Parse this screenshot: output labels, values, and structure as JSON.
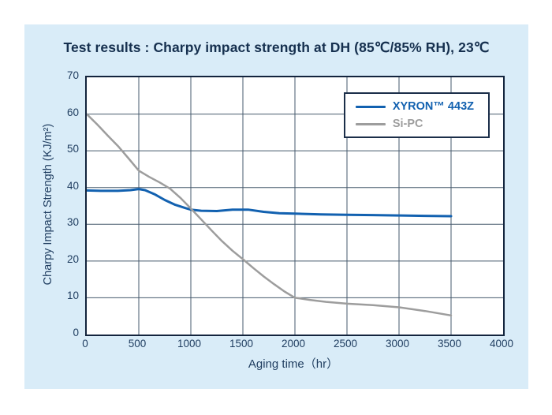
{
  "colors": {
    "panel_background": "#d9ecf8",
    "title_text": "#16304f",
    "axis_text": "#1e3c5f",
    "grid_line": "#465a6d",
    "plot_border": "#13243d",
    "legend_border": "#1b2e49",
    "xyron_blue": "#1261b0",
    "si_pc_gray": "#9d9d9d"
  },
  "chart_data": {
    "type": "line",
    "title": "Test results : Charpy impact strength at DH (85℃/85% RH), 23℃",
    "xlabel": "Aging time（hr）",
    "ylabel": "Charpy Impact Strength (KJ/m²)",
    "xlim": [
      0,
      4000
    ],
    "ylim": [
      0,
      70
    ],
    "xticks": [
      0,
      500,
      1000,
      1500,
      2000,
      2500,
      3000,
      3500,
      4000
    ],
    "yticks": [
      0,
      10,
      20,
      30,
      40,
      50,
      60,
      70
    ],
    "grid": true,
    "legend_position": "top-right-inside",
    "series": [
      {
        "name": "XYRON™ 443Z",
        "color": "#1261b0",
        "width": 3,
        "points": [
          [
            0,
            39.2
          ],
          [
            150,
            39.1
          ],
          [
            300,
            39.1
          ],
          [
            420,
            39.3
          ],
          [
            500,
            39.6
          ],
          [
            560,
            39.3
          ],
          [
            650,
            38.2
          ],
          [
            750,
            36.6
          ],
          [
            850,
            35.3
          ],
          [
            950,
            34.4
          ],
          [
            1000,
            34.0
          ],
          [
            1100,
            33.7
          ],
          [
            1250,
            33.6
          ],
          [
            1400,
            34.0
          ],
          [
            1550,
            34.0
          ],
          [
            1700,
            33.4
          ],
          [
            1850,
            33.0
          ],
          [
            2000,
            32.9
          ],
          [
            2250,
            32.7
          ],
          [
            2500,
            32.6
          ],
          [
            2750,
            32.5
          ],
          [
            3000,
            32.4
          ],
          [
            3250,
            32.3
          ],
          [
            3500,
            32.2
          ]
        ]
      },
      {
        "name": "Si-PC",
        "color": "#9d9d9d",
        "width": 2.5,
        "points": [
          [
            0,
            60
          ],
          [
            100,
            57.2
          ],
          [
            200,
            54.2
          ],
          [
            300,
            51.3
          ],
          [
            400,
            48.0
          ],
          [
            500,
            44.6
          ],
          [
            600,
            42.9
          ],
          [
            700,
            41.4
          ],
          [
            800,
            39.7
          ],
          [
            900,
            37.2
          ],
          [
            1000,
            34.3
          ],
          [
            1100,
            31.3
          ],
          [
            1200,
            28.3
          ],
          [
            1300,
            25.4
          ],
          [
            1400,
            22.8
          ],
          [
            1500,
            20.5
          ],
          [
            1600,
            18.1
          ],
          [
            1700,
            15.8
          ],
          [
            1800,
            13.7
          ],
          [
            1900,
            11.7
          ],
          [
            2000,
            10.0
          ],
          [
            2150,
            9.4
          ],
          [
            2300,
            8.9
          ],
          [
            2500,
            8.4
          ],
          [
            2750,
            8.0
          ],
          [
            3000,
            7.4
          ],
          [
            3250,
            6.4
          ],
          [
            3500,
            5.2
          ]
        ]
      }
    ]
  }
}
